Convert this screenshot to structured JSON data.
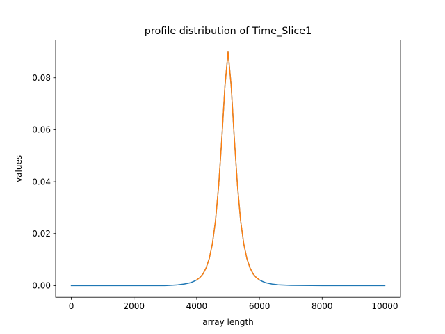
{
  "chart_data": {
    "type": "line",
    "title": "profile distribution of Time_Slice1",
    "xlabel": "array length",
    "ylabel": "values",
    "xlim": [
      -500,
      10500
    ],
    "ylim": [
      -0.0045,
      0.0945
    ],
    "xticks": [
      0,
      2000,
      4000,
      6000,
      8000,
      10000
    ],
    "xtick_labels": [
      "0",
      "2000",
      "4000",
      "6000",
      "8000",
      "10000"
    ],
    "yticks": [
      0.0,
      0.02,
      0.04,
      0.06,
      0.08
    ],
    "ytick_labels": [
      "0.00",
      "0.02",
      "0.04",
      "0.06",
      "0.08"
    ],
    "grid": false,
    "legend": "none",
    "series": [
      {
        "color": "#1f77b4",
        "x": [
          0,
          1000,
          2000,
          3000,
          3400,
          3600,
          3800,
          3900,
          4000,
          4100,
          4200,
          4300,
          4400,
          4500,
          4600,
          4700,
          4800,
          4900,
          5000,
          5100,
          5200,
          5300,
          5400,
          5500,
          5600,
          5700,
          5800,
          5900,
          6000,
          6100,
          6200,
          6400,
          6600,
          7000,
          8000,
          9000,
          10000
        ],
        "values": [
          0.0,
          0.0,
          0.0,
          0.0,
          0.0003,
          0.0006,
          0.0011,
          0.0016,
          0.0022,
          0.0031,
          0.0045,
          0.0068,
          0.0104,
          0.0161,
          0.025,
          0.0385,
          0.0565,
          0.0768,
          0.0899,
          0.0768,
          0.0565,
          0.0385,
          0.025,
          0.0161,
          0.0104,
          0.0068,
          0.0045,
          0.0031,
          0.0022,
          0.0016,
          0.0011,
          0.0006,
          0.0003,
          0.0001,
          0.0,
          0.0,
          0.0
        ]
      },
      {
        "color": "#ff7f0e",
        "x": [
          4000,
          4100,
          4200,
          4300,
          4400,
          4500,
          4600,
          4700,
          4800,
          4900,
          5000,
          5100,
          5200,
          5300,
          5400,
          5500,
          5600,
          5700,
          5800,
          5900,
          6000
        ],
        "values": [
          0.0022,
          0.0031,
          0.0045,
          0.0068,
          0.0104,
          0.0161,
          0.025,
          0.0385,
          0.0565,
          0.0768,
          0.0899,
          0.0768,
          0.0565,
          0.0385,
          0.025,
          0.0161,
          0.0104,
          0.0068,
          0.0045,
          0.0031,
          0.0022
        ]
      }
    ]
  }
}
